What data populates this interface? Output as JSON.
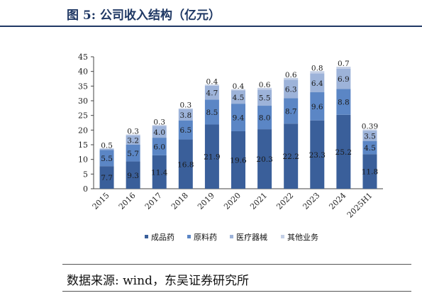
{
  "header": {
    "title": "图 5:  公司收入结构（亿元）"
  },
  "footer": {
    "source": "数据来源:  wind，东吴证券研究所"
  },
  "colors": {
    "title": "#1f3864",
    "series": [
      "#3a5f9a",
      "#5b86c5",
      "#9db3d9",
      "#c3cfe6"
    ],
    "label": "#1a1a1a"
  },
  "chart_data": {
    "type": "bar",
    "stacked": true,
    "title": "",
    "xlabel": "",
    "ylabel": "",
    "categories": [
      "2015",
      "2016",
      "2017",
      "2018",
      "2019",
      "2020",
      "2021",
      "2022",
      "2023",
      "2024",
      "2025H1"
    ],
    "ylim": [
      0,
      45
    ],
    "yticks": [
      0,
      5,
      10,
      15,
      20,
      25,
      30,
      35,
      40,
      45
    ],
    "grid": false,
    "legend_position": "bottom",
    "series": [
      {
        "name": "成品药",
        "values": [
          7.7,
          9.3,
          11.4,
          16.8,
          21.9,
          19.6,
          20.3,
          22.2,
          23.3,
          25.2,
          11.8
        ],
        "labels": [
          "7.7",
          "9.3",
          "11.4",
          "16.8",
          "21.9",
          "19.6",
          "20.3",
          "22.2",
          "23.3",
          "25.2",
          "11.8"
        ]
      },
      {
        "name": "原料药",
        "values": [
          5.5,
          5.7,
          6.0,
          6.5,
          8.5,
          9.4,
          8.0,
          8.7,
          9.6,
          8.8,
          4.5
        ],
        "labels": [
          "5.5",
          "5.7",
          "6.0",
          "6.5",
          "8.5",
          "9.4",
          "8.0",
          "8.7",
          "9.6",
          "8.8",
          "4.5"
        ]
      },
      {
        "name": "医疗器械",
        "values": [
          0.5,
          3.2,
          4.0,
          3.8,
          4.7,
          4.5,
          5.5,
          6.3,
          6.4,
          6.9,
          3.5
        ],
        "labels": [
          "0.5",
          "3.2",
          "4.0",
          "3.8",
          "4.7",
          "4.5",
          "5.5",
          "6.3",
          "6.4",
          "6.9",
          "3.5"
        ]
      },
      {
        "name": "其他业务",
        "values": [
          0,
          0.3,
          0.3,
          0.3,
          0.4,
          0.4,
          0.6,
          0.6,
          0.8,
          0.7,
          0.39
        ],
        "labels": [
          "",
          "0.3",
          "0.3",
          "0.3",
          "0.4",
          "0.4",
          "0.6",
          "0.6",
          "0.8",
          "0.7",
          "0.39"
        ]
      }
    ]
  }
}
